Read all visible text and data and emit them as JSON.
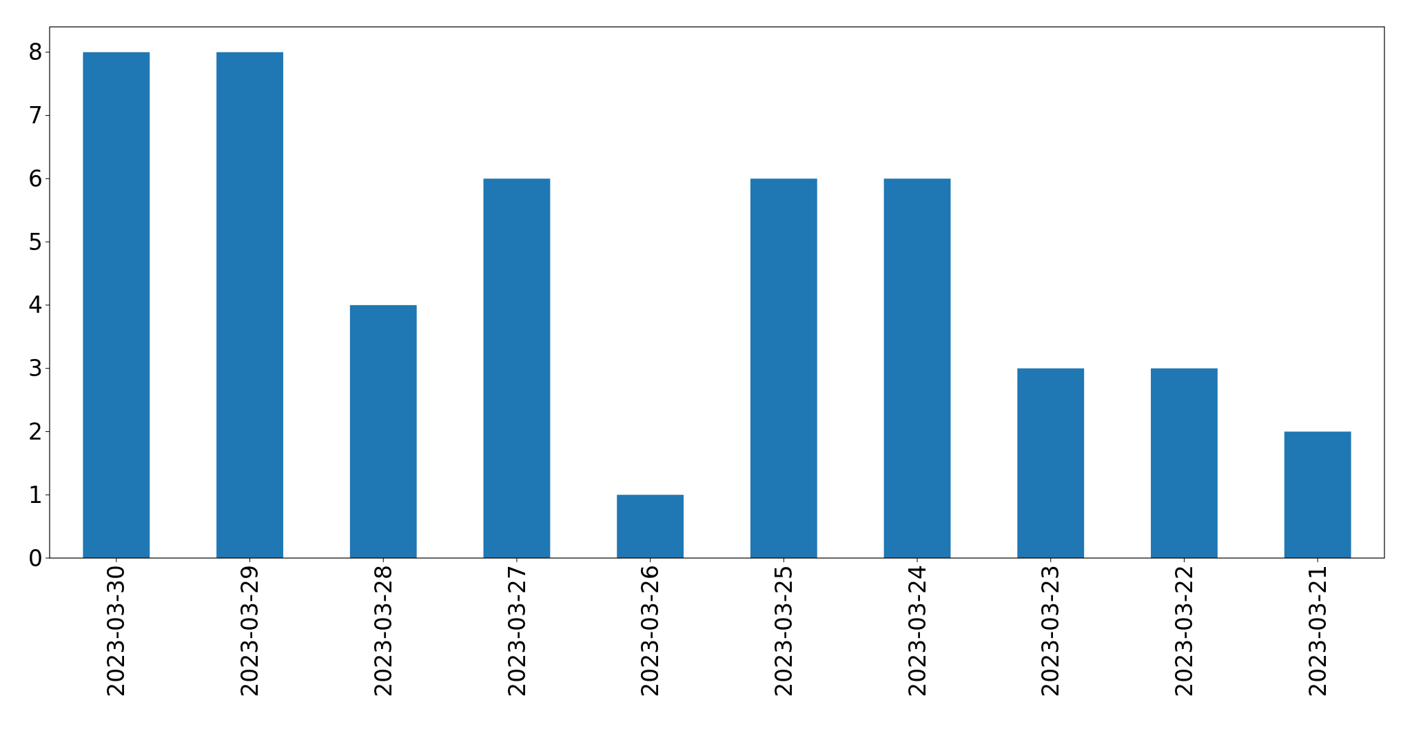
{
  "chart_data": {
    "type": "bar",
    "categories": [
      "2023-03-30",
      "2023-03-29",
      "2023-03-28",
      "2023-03-27",
      "2023-03-26",
      "2023-03-25",
      "2023-03-24",
      "2023-03-23",
      "2023-03-22",
      "2023-03-21"
    ],
    "values": [
      8,
      8,
      4,
      6,
      1,
      6,
      6,
      3,
      3,
      2
    ],
    "color": "#1f77b4",
    "ylim": [
      0,
      8.4
    ],
    "yticks": [
      0,
      1,
      2,
      3,
      4,
      5,
      6,
      7,
      8
    ],
    "grid": false
  }
}
